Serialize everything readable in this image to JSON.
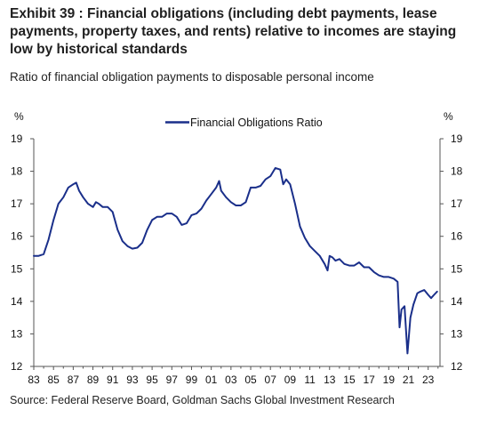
{
  "title": "Exhibit 39 : Financial obligations (including debt payments, lease payments, property taxes, and rents) relative to incomes are staying low by historical standards",
  "subtitle": "Ratio of financial obligation payments to disposable personal income",
  "source": "Source: Federal Reserve Board, Goldman Sachs Global Investment Research",
  "chart_data": {
    "type": "line",
    "ylabel_left": "%",
    "ylabel_right": "%",
    "ylim": [
      12,
      19
    ],
    "yticks": [
      12,
      13,
      14,
      15,
      16,
      17,
      18,
      19
    ],
    "xlim": [
      1983,
      2024.2
    ],
    "xtick_labels": [
      "83",
      "85",
      "87",
      "89",
      "91",
      "93",
      "95",
      "97",
      "99",
      "01",
      "03",
      "05",
      "07",
      "09",
      "11",
      "13",
      "15",
      "17",
      "19",
      "21",
      "23"
    ],
    "xtick_years": [
      1983,
      1985,
      1987,
      1989,
      1991,
      1993,
      1995,
      1997,
      1999,
      2001,
      2003,
      2005,
      2007,
      2009,
      2011,
      2013,
      2015,
      2017,
      2019,
      2021,
      2023
    ],
    "legend_position": "top-center",
    "colors": {
      "line": "#1a2f8a",
      "axis": "#555555"
    },
    "series": [
      {
        "name": "Financial Obligations Ratio",
        "x": [
          1983.0,
          1983.5,
          1984.0,
          1984.5,
          1985.0,
          1985.5,
          1986.0,
          1986.5,
          1987.0,
          1987.3,
          1987.6,
          1988.0,
          1988.5,
          1989.0,
          1989.3,
          1989.6,
          1990.0,
          1990.5,
          1991.0,
          1991.5,
          1992.0,
          1992.5,
          1993.0,
          1993.5,
          1994.0,
          1994.5,
          1995.0,
          1995.5,
          1996.0,
          1996.5,
          1997.0,
          1997.5,
          1998.0,
          1998.5,
          1999.0,
          1999.5,
          2000.0,
          2000.5,
          2001.0,
          2001.5,
          2001.8,
          2002.0,
          2002.5,
          2003.0,
          2003.5,
          2004.0,
          2004.5,
          2005.0,
          2005.5,
          2006.0,
          2006.5,
          2007.0,
          2007.5,
          2008.0,
          2008.3,
          2008.6,
          2009.0,
          2009.5,
          2010.0,
          2010.5,
          2011.0,
          2011.5,
          2012.0,
          2012.5,
          2012.8,
          2013.0,
          2013.3,
          2013.6,
          2014.0,
          2014.5,
          2015.0,
          2015.5,
          2016.0,
          2016.5,
          2017.0,
          2017.5,
          2018.0,
          2018.5,
          2019.0,
          2019.5,
          2019.9,
          2020.1,
          2020.3,
          2020.6,
          2020.9,
          2021.2,
          2021.5,
          2021.9,
          2022.2,
          2022.6,
          2023.0,
          2023.3,
          2023.6,
          2023.9
        ],
        "y": [
          15.4,
          15.4,
          15.45,
          15.9,
          16.5,
          17.0,
          17.2,
          17.5,
          17.6,
          17.65,
          17.4,
          17.2,
          17.0,
          16.9,
          17.05,
          17.0,
          16.9,
          16.9,
          16.75,
          16.2,
          15.85,
          15.7,
          15.62,
          15.65,
          15.8,
          16.2,
          16.5,
          16.6,
          16.6,
          16.7,
          16.7,
          16.6,
          16.35,
          16.4,
          16.65,
          16.7,
          16.85,
          17.1,
          17.3,
          17.5,
          17.7,
          17.4,
          17.2,
          17.05,
          16.95,
          16.95,
          17.05,
          17.5,
          17.5,
          17.55,
          17.75,
          17.85,
          18.1,
          18.05,
          17.6,
          17.75,
          17.6,
          17.0,
          16.3,
          15.95,
          15.7,
          15.55,
          15.4,
          15.15,
          14.95,
          15.4,
          15.35,
          15.25,
          15.3,
          15.15,
          15.1,
          15.1,
          15.2,
          15.05,
          15.05,
          14.9,
          14.8,
          14.75,
          14.75,
          14.7,
          14.6,
          13.2,
          13.75,
          13.85,
          12.4,
          13.5,
          13.9,
          14.25,
          14.3,
          14.35,
          14.2,
          14.1,
          14.2,
          14.3
        ]
      }
    ]
  }
}
